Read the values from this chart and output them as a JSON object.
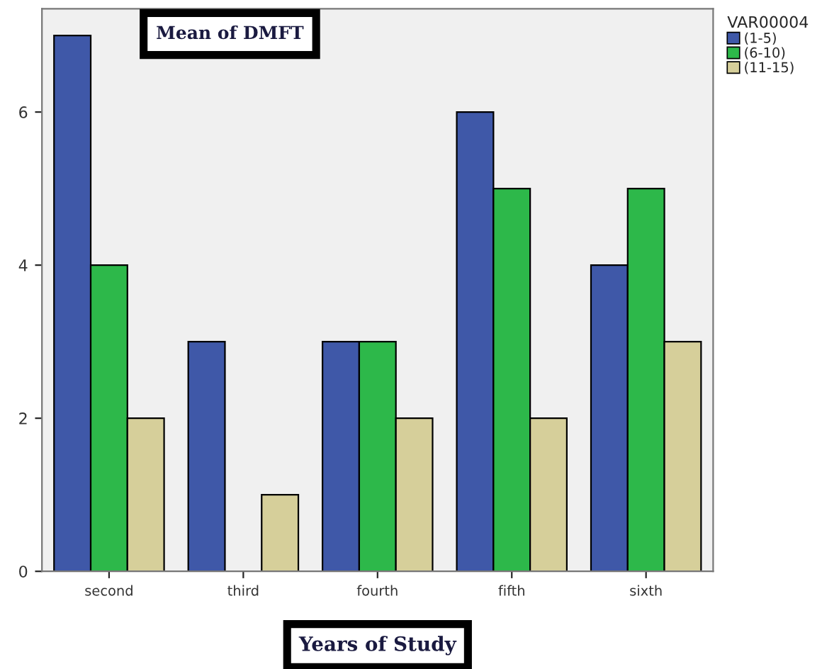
{
  "chart_data": {
    "type": "bar",
    "title": "Mean of DMFT",
    "xlabel": "Years of Study",
    "legend_title": "VAR00004",
    "categories": [
      "second",
      "third",
      "fourth",
      "fifth",
      "sixth"
    ],
    "series": [
      {
        "name": "(1-5)",
        "color": "#3f58a8",
        "values": [
          7,
          3,
          3,
          6,
          4
        ]
      },
      {
        "name": "(6-10)",
        "color": "#2db84a",
        "values": [
          4,
          null,
          3,
          5,
          5
        ]
      },
      {
        "name": "(11-15)",
        "color": "#d6cf9a",
        "values": [
          2,
          1,
          2,
          2,
          3
        ]
      }
    ],
    "ylim": [
      0,
      7.35
    ],
    "yticks": [
      0,
      2,
      4,
      6
    ],
    "grid": false,
    "legend": "top right"
  }
}
